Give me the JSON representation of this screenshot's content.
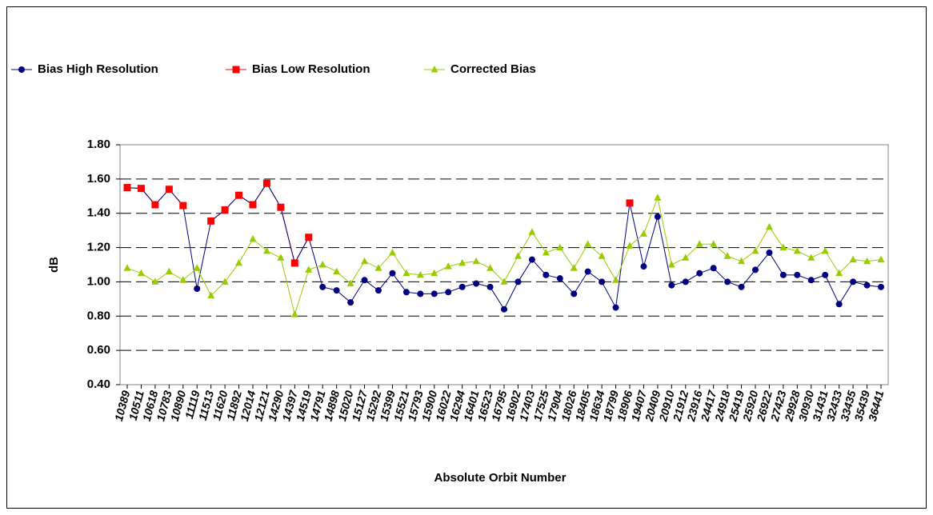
{
  "chart_data": {
    "type": "line",
    "x_label": "Absolute Orbit Number",
    "y_label": "dB",
    "categories": [
      "10389",
      "10511",
      "10618",
      "10783",
      "10890",
      "11119",
      "11513",
      "11620",
      "11892",
      "12014",
      "12121",
      "14290",
      "14397",
      "14519",
      "14791",
      "14898",
      "15020",
      "15127",
      "15292",
      "15399",
      "15521",
      "15793",
      "15900",
      "16022",
      "16294",
      "16401",
      "16523",
      "16795",
      "16902",
      "17403",
      "17525",
      "17904",
      "18026",
      "18405",
      "18634",
      "18799",
      "18906",
      "19407",
      "20409",
      "20910",
      "21912",
      "23916",
      "24417",
      "24918",
      "25419",
      "25920",
      "26922",
      "27423",
      "29928",
      "30930",
      "31431",
      "32433",
      "33435",
      "35439",
      "36441"
    ],
    "series": [
      {
        "name": "Bias High Resolution",
        "color": "#000080",
        "marker": "circle",
        "values": [
          1.55,
          1.545,
          1.45,
          1.54,
          1.445,
          0.96,
          1.355,
          1.42,
          1.505,
          1.45,
          1.575,
          1.435,
          1.11,
          1.26,
          0.97,
          0.95,
          0.88,
          1.01,
          0.95,
          1.05,
          0.94,
          0.93,
          0.93,
          0.94,
          0.97,
          0.99,
          0.97,
          0.84,
          1.0,
          1.13,
          1.04,
          1.02,
          0.93,
          1.06,
          1.0,
          0.85,
          1.46,
          1.09,
          1.38,
          0.98,
          1.0,
          1.05,
          1.08,
          1.0,
          0.97,
          1.07,
          1.17,
          1.04,
          1.04,
          1.01,
          1.04,
          0.87,
          1.0,
          0.98,
          0.97
        ]
      },
      {
        "name": "Bias Low Resolution",
        "color": "#ff0000",
        "marker": "square",
        "values": [
          1.55,
          1.545,
          1.45,
          1.54,
          1.445,
          null,
          1.355,
          1.42,
          1.505,
          1.45,
          1.575,
          1.435,
          1.11,
          1.26,
          null,
          null,
          null,
          null,
          null,
          null,
          null,
          null,
          null,
          null,
          null,
          null,
          null,
          null,
          null,
          null,
          null,
          null,
          null,
          null,
          null,
          null,
          1.46,
          null,
          null,
          null,
          null,
          null,
          null,
          null,
          null,
          null,
          null,
          null,
          null,
          null,
          null,
          null,
          null,
          null,
          null
        ]
      },
      {
        "name": "Corrected Bias",
        "color": "#99cc00",
        "marker": "triangle",
        "values": [
          1.08,
          1.05,
          1.0,
          1.06,
          1.01,
          1.08,
          0.92,
          1.0,
          1.11,
          1.25,
          1.18,
          1.14,
          0.81,
          1.07,
          1.1,
          1.06,
          0.99,
          1.12,
          1.08,
          1.17,
          1.05,
          1.04,
          1.05,
          1.09,
          1.11,
          1.12,
          1.08,
          1.0,
          1.15,
          1.29,
          1.17,
          1.2,
          1.08,
          1.22,
          1.15,
          1.01,
          1.21,
          1.28,
          1.49,
          1.1,
          1.14,
          1.22,
          1.22,
          1.15,
          1.12,
          1.18,
          1.32,
          1.2,
          1.18,
          1.14,
          1.18,
          1.05,
          1.13,
          1.12,
          1.13
        ]
      }
    ],
    "ylim": [
      0.4,
      1.8
    ],
    "yticks": [
      {
        "value": 0.4,
        "label": "0.40"
      },
      {
        "value": 0.6,
        "label": "0.60"
      },
      {
        "value": 0.8,
        "label": "0.80"
      },
      {
        "value": 1.0,
        "label": "1.00"
      },
      {
        "value": 1.2,
        "label": "1.20"
      },
      {
        "value": 1.4,
        "label": "1.40"
      },
      {
        "value": 1.6,
        "label": "1.60"
      },
      {
        "value": 1.8,
        "label": "1.80"
      }
    ],
    "grid": true,
    "legend": "top-left"
  }
}
